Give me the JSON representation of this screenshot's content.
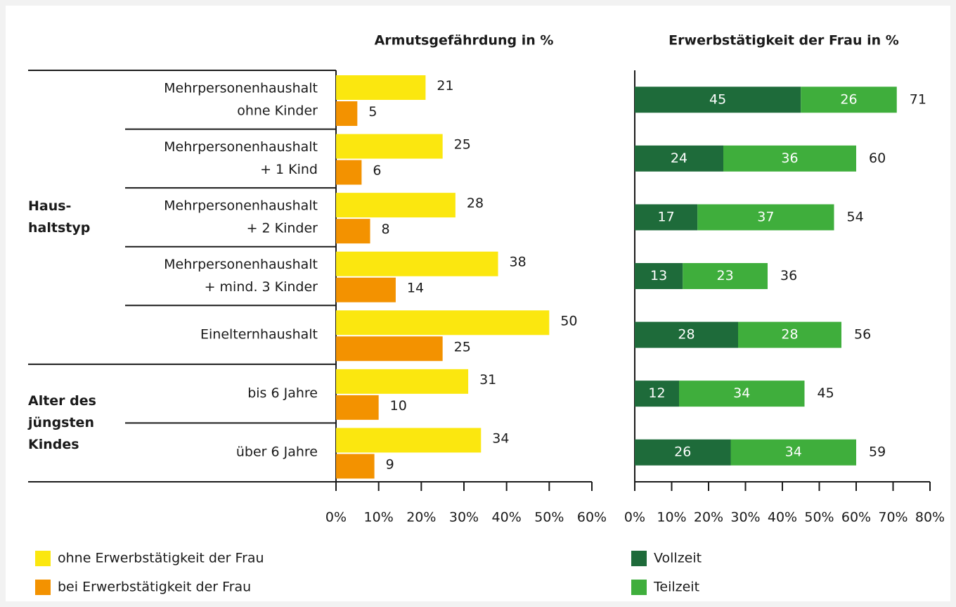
{
  "chart_data": [
    {
      "type": "bar",
      "title": "Armutsgefährdung in %",
      "groups": [
        {
          "label": [
            "Haus-",
            "haltstyp"
          ],
          "categories": [
            [
              "Mehrpersonenhaushalt",
              "ohne Kinder"
            ],
            [
              "Mehrpersonenhaushalt",
              "+ 1 Kind"
            ],
            [
              "Mehrpersonenhaushalt",
              "+ 2 Kinder"
            ],
            [
              "Mehrpersonenhaushalt",
              "+ mind. 3 Kinder"
            ],
            [
              "Einelternhaushalt"
            ]
          ]
        },
        {
          "label": [
            "Alter des",
            "jüngsten",
            "Kindes"
          ],
          "categories": [
            [
              "bis 6 Jahre"
            ],
            [
              "über 6 Jahre"
            ]
          ]
        }
      ],
      "series": [
        {
          "name": "ohne Erwerbstätigkeit der Frau",
          "color": "#fbe70f",
          "values": [
            21,
            25,
            28,
            38,
            50,
            31,
            34
          ]
        },
        {
          "name": "bei Erwerbstätigkeit der Frau",
          "color": "#f39200",
          "values": [
            5,
            6,
            8,
            14,
            25,
            10,
            9
          ]
        }
      ],
      "xlim": [
        0,
        60
      ],
      "xticks": [
        {
          "value": 0,
          "label": "0%"
        },
        {
          "value": 10,
          "label": "10%"
        },
        {
          "value": 20,
          "label": "20%"
        },
        {
          "value": 30,
          "label": "30%"
        },
        {
          "value": 40,
          "label": "40%"
        },
        {
          "value": 50,
          "label": "50%"
        },
        {
          "value": 60,
          "label": "60%"
        }
      ]
    },
    {
      "type": "stacked_bar",
      "title": "Erwerbstätigkeit der Frau in %",
      "series": [
        {
          "name": "Vollzeit",
          "color": "#1e6b3a",
          "values": [
            45,
            24,
            17,
            13,
            28,
            12,
            26
          ]
        },
        {
          "name": "Teilzeit",
          "color": "#3fae3c",
          "values": [
            26,
            36,
            37,
            23,
            28,
            34,
            34
          ]
        }
      ],
      "totals": [
        71,
        60,
        54,
        36,
        56,
        45,
        59
      ],
      "xlim": [
        0,
        80
      ],
      "xticks": [
        {
          "value": 0,
          "label": "0%"
        },
        {
          "value": 10,
          "label": "10%"
        },
        {
          "value": 20,
          "label": "20%"
        },
        {
          "value": 30,
          "label": "30%"
        },
        {
          "value": 40,
          "label": "40%"
        },
        {
          "value": 50,
          "label": "50%"
        },
        {
          "value": 60,
          "label": "60%"
        },
        {
          "value": 70,
          "label": "70%"
        },
        {
          "value": 80,
          "label": "80%"
        }
      ]
    }
  ]
}
